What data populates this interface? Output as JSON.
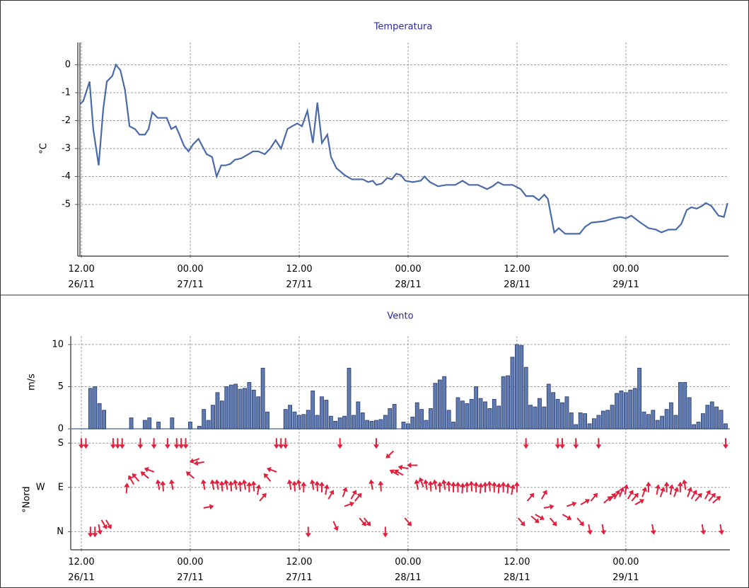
{
  "chart_data": [
    {
      "type": "line",
      "title": "Temperatura",
      "y_label": "°C",
      "x": [
        -0.15,
        0.2,
        0.9,
        1.3,
        1.9,
        2.4,
        2.8,
        3.4,
        3.8,
        4.3,
        4.8,
        5.3,
        5.9,
        6.4,
        7.0,
        7.4,
        7.8,
        8.4,
        9.4,
        9.9,
        10.4,
        10.8,
        11.3,
        11.8,
        12.3,
        12.9,
        13.3,
        13.8,
        14.4,
        14.9,
        15.4,
        15.9,
        16.4,
        16.9,
        17.6,
        18.4,
        18.9,
        19.5,
        20.2,
        20.8,
        21.4,
        22.0,
        22.7,
        23.2,
        23.8,
        24.3,
        24.9,
        25.5,
        26.0,
        26.5,
        27.1,
        27.5,
        28.1,
        29.0,
        29.8,
        31.0,
        31.6,
        32.1,
        32.5,
        33.1,
        33.7,
        34.2,
        34.7,
        35.2,
        35.7,
        36.5,
        37.4,
        37.8,
        38.4,
        39.3,
        40.2,
        41.2,
        42.0,
        42.7,
        43.7,
        44.7,
        45.3,
        45.9,
        46.5,
        47.5,
        48.4,
        49.0,
        49.8,
        50.4,
        51.0,
        51.4,
        52.1,
        52.6,
        53.3,
        54.9,
        55.5,
        56.2,
        57.6,
        58.6,
        59.4,
        60.0,
        60.6,
        61.6,
        62.5,
        63.3,
        63.9,
        64.7,
        65.5,
        66.1,
        66.7,
        67.2,
        67.8,
        68.4,
        68.8,
        69.4,
        70.2,
        70.8,
        71.2
      ],
      "series": [
        {
          "color": "#4a6aa8",
          "values": [
            -1.4,
            -1.3,
            -0.6,
            -2.3,
            -3.6,
            -1.6,
            -0.6,
            -0.4,
            0,
            -0.2,
            -0.9,
            -2.2,
            -2.3,
            -2.5,
            -2.5,
            -2.3,
            -1.7,
            -1.9,
            -1.9,
            -2.3,
            -2.2,
            -2.5,
            -2.9,
            -3.1,
            -2.85,
            -2.65,
            -2.9,
            -3.2,
            -3.3,
            -4.0,
            -3.6,
            -3.6,
            -3.55,
            -3.4,
            -3.35,
            -3.2,
            -3.1,
            -3.1,
            -3.2,
            -3.0,
            -2.7,
            -3.0,
            -2.3,
            -2.2,
            -2.1,
            -2.2,
            -1.65,
            -2.8,
            -1.35,
            -2.8,
            -2.5,
            -3.3,
            -3.7,
            -3.95,
            -4.1,
            -4.1,
            -4.2,
            -4.15,
            -4.3,
            -4.25,
            -4.05,
            -4.1,
            -3.9,
            -3.95,
            -4.15,
            -4.2,
            -4.15,
            -4.0,
            -4.2,
            -4.35,
            -4.3,
            -4.3,
            -4.15,
            -4.3,
            -4.3,
            -4.45,
            -4.35,
            -4.2,
            -4.3,
            -4.3,
            -4.45,
            -4.7,
            -4.7,
            -4.85,
            -4.65,
            -4.8,
            -6.0,
            -5.85,
            -6.05,
            -6.05,
            -5.8,
            -5.65,
            -5.6,
            -5.5,
            -5.45,
            -5.5,
            -5.4,
            -5.65,
            -5.85,
            -5.9,
            -6.0,
            -5.9,
            -5.9,
            -5.7,
            -5.2,
            -5.1,
            -5.15,
            -5.05,
            -4.95,
            -5.05,
            -5.4,
            -5.45,
            -4.95
          ]
        }
      ],
      "xlim": [
        -0.4,
        71.3
      ],
      "xticks": [
        {
          "value": 0,
          "label": "12.00\n26/11"
        },
        {
          "value": 12,
          "label": "00.00\n27/11"
        },
        {
          "value": 24,
          "label": "12.00\n27/11"
        },
        {
          "value": 36,
          "label": "00.00\n28/11"
        },
        {
          "value": 48,
          "label": "12.00\n28/11"
        },
        {
          "value": 60,
          "label": "00.00\n29/11"
        }
      ],
      "ylim": [
        -6.8,
        0.8
      ],
      "yticks": [
        -5,
        -4,
        -3,
        -2,
        -1,
        0
      ],
      "grid": true
    },
    {
      "type": "bar",
      "title": "Vento",
      "y_label": "m/s",
      "y2_label": "°Nord",
      "x": [
        0,
        0.5,
        1,
        1.5,
        2,
        2.5,
        3,
        3.5,
        4,
        4.5,
        5,
        5.5,
        6,
        6.5,
        7,
        7.5,
        8,
        8.5,
        9,
        9.5,
        10,
        10.5,
        11,
        11.5,
        12,
        12.5,
        13,
        13.5,
        14,
        14.5,
        15,
        15.5,
        16,
        16.5,
        17,
        17.5,
        18,
        18.5,
        19,
        19.5,
        20,
        20.5,
        21,
        21.5,
        22,
        22.5,
        23,
        23.5,
        24,
        24.5,
        25,
        25.5,
        26,
        26.5,
        27,
        27.5,
        28,
        28.5,
        29,
        29.5,
        30,
        30.5,
        31,
        31.5,
        32,
        32.5,
        33,
        33.5,
        34,
        34.5,
        35,
        35.5,
        36,
        36.5,
        37,
        37.5,
        38,
        38.5,
        39,
        39.5,
        40,
        40.5,
        41,
        41.5,
        42,
        42.5,
        43,
        43.5,
        44,
        44.5,
        45,
        45.5,
        46,
        46.5,
        47,
        47.5,
        48,
        48.5,
        49,
        49.5,
        50,
        50.5,
        51,
        51.5,
        52,
        52.5,
        53,
        53.5,
        54,
        54.5,
        55,
        55.5,
        56,
        56.5,
        57,
        57.5,
        58,
        58.5,
        59,
        59.5,
        60,
        60.5,
        61,
        61.5,
        62,
        62.5,
        63,
        63.5,
        64,
        64.5,
        65,
        65.5,
        66,
        66.5,
        67,
        67.5,
        68,
        68.5,
        69,
        69.5,
        70,
        70.5,
        71
      ],
      "series": [
        {
          "color": "#5f7bb2",
          "values": [
            0,
            0,
            4.8,
            5,
            3,
            2.2,
            0,
            0,
            0,
            0,
            0,
            1.3,
            0,
            0,
            1.0,
            1.3,
            0,
            0.8,
            0,
            0,
            1.3,
            0,
            0,
            0,
            0.8,
            0,
            0.3,
            2.3,
            1,
            2.8,
            4.3,
            3.3,
            5,
            5.2,
            5.3,
            4.7,
            4.8,
            5.5,
            4.6,
            3.8,
            7.2,
            2,
            0,
            0,
            0,
            2.3,
            2.8,
            2,
            1.6,
            1.7,
            2.2,
            4.5,
            1.6,
            3.8,
            3.4,
            1.5,
            0.9,
            1.3,
            1.5,
            7.2,
            1.6,
            3.2,
            1.9,
            1,
            0.9,
            1,
            1.1,
            1.6,
            2.4,
            2.9,
            0,
            0.8,
            0.6,
            1.4,
            3.1,
            2.3,
            1,
            2.4,
            5.4,
            5.8,
            6.2,
            2.2,
            0.8,
            3.7,
            3.3,
            3,
            3.5,
            5,
            3.6,
            3.2,
            2.4,
            3.5,
            2.7,
            6.2,
            6.3,
            8.5,
            10,
            9.9,
            7.3,
            2.8,
            2.6,
            3.6,
            2.6,
            5.3,
            4.3,
            3.5,
            3.1,
            3.8,
            1.9,
            0.5,
            1.9,
            1.8,
            0.6,
            1.2,
            1.6,
            2.1,
            2.2,
            2.8,
            4.2,
            4.5,
            4.3,
            4.6,
            4.8,
            7.2,
            2,
            1.7,
            2.2,
            1,
            1.5,
            2.3,
            3.1,
            1.6,
            5.5,
            5.5,
            3.7,
            0.5,
            0.8,
            1.8,
            2.8,
            3.2,
            2.6,
            2.2,
            0.6
          ]
        },
        {
          "type": "quiver",
          "axis": "y2",
          "color": "#e0203c",
          "values": [
            180,
            180,
            0,
            0,
            5,
            15,
            15,
            180,
            180,
            180,
            88,
            105,
            110,
            180,
            115,
            125,
            180,
            95,
            92,
            180,
            95,
            180,
            180,
            180,
            115,
            145,
            140,
            95,
            50,
            95,
            95,
            92,
            95,
            92,
            95,
            92,
            95,
            90,
            92,
            85,
            70,
            110,
            125,
            180,
            180,
            180,
            95,
            92,
            95,
            90,
            0,
            95,
            92,
            90,
            85,
            75,
            12,
            180,
            80,
            55,
            75,
            70,
            20,
            20,
            95,
            180,
            92,
            0,
            157,
            120,
            120,
            130,
            20,
            135,
            95,
            100,
            95,
            92,
            95,
            90,
            95,
            92,
            90,
            90,
            88,
            90,
            92,
            90,
            88,
            90,
            92,
            90,
            88,
            90,
            88,
            85,
            90,
            20,
            180,
            70,
            25,
            30,
            75,
            50,
            20,
            180,
            180,
            30,
            55,
            180,
            20,
            60,
            5,
            70,
            180,
            5,
            65,
            70,
            75,
            80,
            85,
            75,
            70,
            60,
            80,
            90,
            5,
            85,
            80,
            90,
            85,
            80,
            90,
            95,
            80,
            75,
            70,
            5,
            75,
            70,
            65,
            5,
            180
          ]
        }
      ],
      "xlim": [
        -1.17,
        71.47
      ],
      "xticks": [
        {
          "value": 0,
          "label": "12.00\n26/11"
        },
        {
          "value": 12,
          "label": "00.00\n27/11"
        },
        {
          "value": 24,
          "label": "12.00\n27/11"
        },
        {
          "value": 36,
          "label": "00.00\n28/11"
        },
        {
          "value": 48,
          "label": "12.00\n28/11"
        },
        {
          "value": 60,
          "label": "00.00\n29/11"
        }
      ],
      "ylim": [
        0,
        11
      ],
      "yticks": [
        0,
        5,
        10
      ],
      "y2lim": [
        -34,
        189
      ],
      "y2ticks": [
        {
          "value": 0,
          "label": "N"
        },
        {
          "value": 90,
          "label": "W E"
        },
        {
          "value": 180,
          "label": "S"
        }
      ],
      "grid": true
    }
  ]
}
